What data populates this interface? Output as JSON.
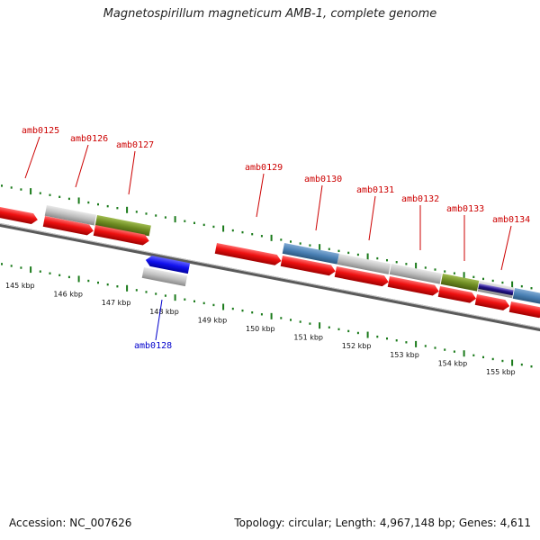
{
  "title": "Magnetospirillum magneticum AMB-1, complete genome",
  "footer": {
    "accession": "Accession: NC_007626",
    "summary": "Topology: circular; Length: 4,967,148 bp; Genes: 4,611"
  },
  "kbp_labels": [
    "145 kbp",
    "146 kbp",
    "147 kbp",
    "148 kbp",
    "149 kbp",
    "150 kbp",
    "151 kbp",
    "152 kbp",
    "153 kbp",
    "154 kbp",
    "155 kbp"
  ],
  "gene_labels": [
    "amb0125",
    "amb0126",
    "amb0127",
    "amb0128",
    "amb0129",
    "amb0130",
    "amb0131",
    "amb0132",
    "amb0133",
    "amb0134"
  ],
  "colors": {
    "cds_red": "#ee1111",
    "gene_gray": "#c0c0c0",
    "gene_green": "#6e8c22",
    "gene_steelblue": "#4a80b4",
    "gene_blue": "#1111ee",
    "gene_navy": "#221188",
    "tick_green": "#1a7a1a",
    "label_red": "#cc0000",
    "label_blue": "#0000cc"
  }
}
